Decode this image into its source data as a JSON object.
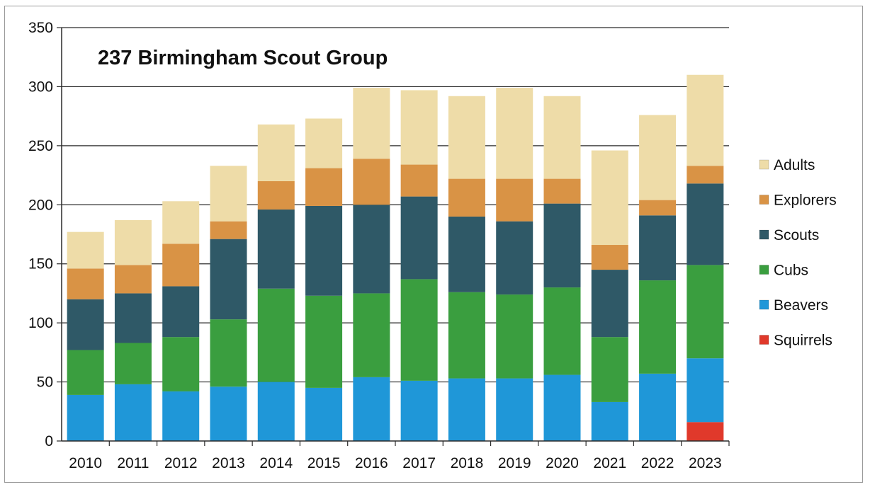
{
  "chart_data": {
    "type": "bar",
    "stacked": true,
    "title": "237 Birmingham Scout Group",
    "xlabel": "",
    "ylabel": "",
    "ylim": [
      0,
      350
    ],
    "yticks": [
      0,
      50,
      100,
      150,
      200,
      250,
      300,
      350
    ],
    "grid": true,
    "legend_position": "right",
    "categories": [
      "2010",
      "2011",
      "2012",
      "2013",
      "2014",
      "2015",
      "2016",
      "2017",
      "2018",
      "2019",
      "2020",
      "2021",
      "2022",
      "2023"
    ],
    "series": [
      {
        "name": "Squirrels",
        "color": "#e0392b",
        "values": [
          0,
          0,
          0,
          0,
          0,
          0,
          0,
          0,
          0,
          0,
          0,
          0,
          0,
          16
        ]
      },
      {
        "name": "Beavers",
        "color": "#1f97d8",
        "values": [
          39,
          48,
          42,
          46,
          50,
          45,
          54,
          51,
          53,
          53,
          56,
          33,
          57,
          54
        ]
      },
      {
        "name": "Cubs",
        "color": "#3a9e3f",
        "values": [
          38,
          35,
          46,
          57,
          79,
          78,
          71,
          86,
          73,
          71,
          74,
          55,
          79,
          79
        ]
      },
      {
        "name": "Scouts",
        "color": "#2f5967",
        "values": [
          43,
          42,
          43,
          68,
          67,
          76,
          75,
          70,
          64,
          62,
          71,
          57,
          55,
          69
        ]
      },
      {
        "name": "Explorers",
        "color": "#d99345",
        "values": [
          26,
          24,
          36,
          15,
          24,
          32,
          39,
          27,
          32,
          36,
          21,
          21,
          13,
          15
        ]
      },
      {
        "name": "Adults",
        "color": "#eedca8",
        "values": [
          31,
          38,
          36,
          47,
          48,
          42,
          60,
          63,
          70,
          77,
          70,
          80,
          72,
          77
        ]
      }
    ]
  }
}
